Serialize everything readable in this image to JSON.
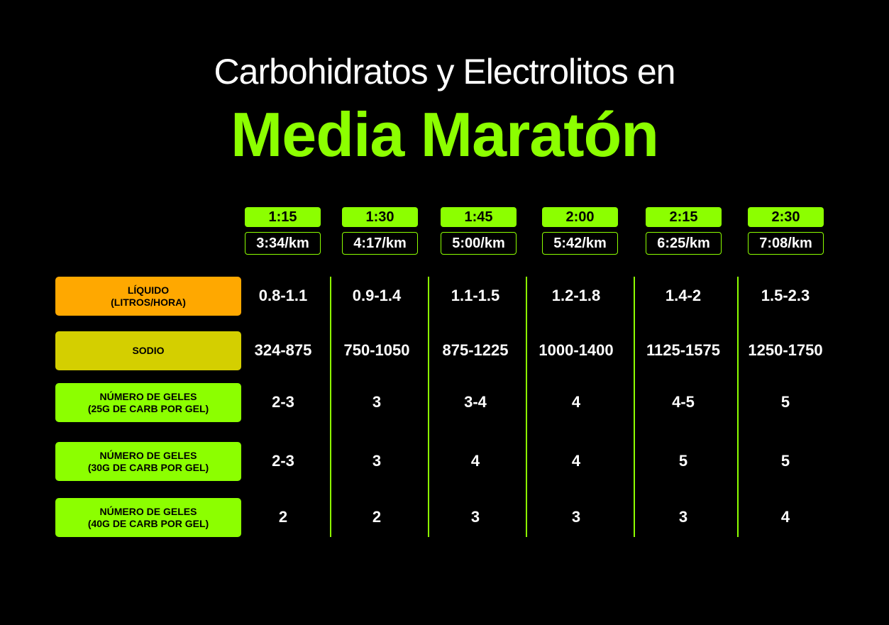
{
  "title": {
    "line1": "Carbohidratos y Electrolitos en",
    "line2": "Media Maratón"
  },
  "colors": {
    "accent_green": "#8cff00",
    "orange": "#ffa800",
    "olive": "#d4cf00",
    "background": "#000000"
  },
  "columns": [
    {
      "time": "1:15",
      "pace": "3:34/km"
    },
    {
      "time": "1:30",
      "pace": "4:17/km"
    },
    {
      "time": "1:45",
      "pace": "5:00/km"
    },
    {
      "time": "2:00",
      "pace": "5:42/km"
    },
    {
      "time": "2:15",
      "pace": "6:25/km"
    },
    {
      "time": "2:30",
      "pace": "7:08/km"
    }
  ],
  "rows": [
    {
      "label1": "LÍQUIDO",
      "label2": "(LITROS/HORA)",
      "values": [
        "0.8-1.1",
        "0.9-1.4",
        "1.1-1.5",
        "1.2-1.8",
        "1.4-2",
        "1.5-2.3"
      ]
    },
    {
      "label1": "SODIO",
      "label2": "",
      "values": [
        "324-875",
        "750-1050",
        "875-1225",
        "1000-1400",
        "1125-1575",
        "1250-1750"
      ]
    },
    {
      "label1": "NÚMERO DE GELES",
      "label2": "(25G DE CARB POR GEL)",
      "values": [
        "2-3",
        "3",
        "3-4",
        "4",
        "4-5",
        "5"
      ]
    },
    {
      "label1": "NÚMERO DE GELES",
      "label2": "(30G DE CARB POR GEL)",
      "values": [
        "2-3",
        "3",
        "4",
        "4",
        "5",
        "5"
      ]
    },
    {
      "label1": "NÚMERO DE GELES",
      "label2": "(40G DE CARB POR GEL)",
      "values": [
        "2",
        "2",
        "3",
        "3",
        "3",
        "4"
      ]
    }
  ]
}
